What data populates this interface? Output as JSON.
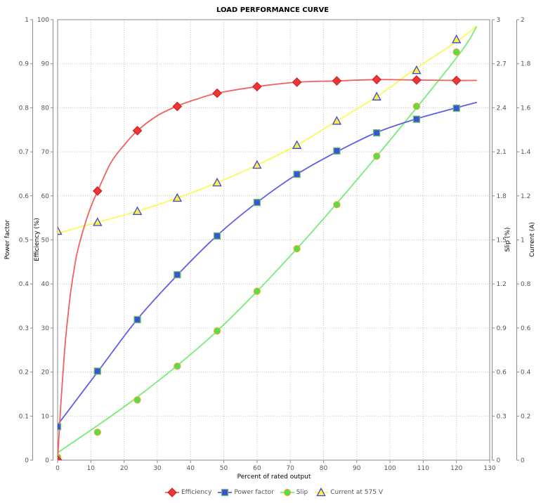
{
  "title": "LOAD PERFORMANCE CURVE",
  "axes": {
    "x": {
      "label": "Percent of rated output",
      "min": 0,
      "max": 130,
      "ticks": [
        "0",
        "10",
        "20",
        "30",
        "40",
        "50",
        "60",
        "70",
        "80",
        "90",
        "100",
        "110",
        "120",
        "130"
      ]
    },
    "power_factor": {
      "label": "Power factor",
      "min": 0,
      "max": 1,
      "ticks": [
        "0",
        "0.1",
        "0.2",
        "0.3",
        "0.4",
        "0.5",
        "0.6",
        "0.7",
        "0.8",
        "0.9",
        "1"
      ]
    },
    "efficiency": {
      "label": "Efficiency (%)",
      "min": 0,
      "max": 100,
      "ticks": [
        "0",
        "10",
        "20",
        "30",
        "40",
        "50",
        "60",
        "70",
        "80",
        "90",
        "100"
      ]
    },
    "slip": {
      "label": "Slip (%)",
      "min": 0,
      "max": 3,
      "ticks": [
        "0",
        "0.3",
        "0.6",
        "0.9",
        "1.2",
        "1.5",
        "1.8",
        "2.1",
        "2.4",
        "2.7",
        "3"
      ]
    },
    "current": {
      "label": "Current (A)",
      "min": 0,
      "max": 2,
      "ticks": [
        "0",
        "0.2",
        "0.4",
        "0.6",
        "0.8",
        "1",
        "1.2",
        "1.4",
        "1.6",
        "1.8",
        "2"
      ]
    }
  },
  "chart_data": {
    "type": "line",
    "title": "LOAD PERFORMANCE CURVE",
    "xlabel": "Percent of rated output",
    "xlim": [
      0,
      130
    ],
    "grid": true,
    "legend_position": "bottom",
    "x": [
      0,
      12,
      24,
      36,
      48,
      60,
      72,
      84,
      96,
      108,
      120
    ],
    "series": [
      {
        "name": "Current at 575 V",
        "yaxis": "current",
        "ylim": [
          0,
          2
        ],
        "marker": "triangle",
        "line_color": "#fafa58",
        "marker_fill": "#fdec49",
        "marker_stroke": "#3d49d3",
        "values": [
          1.04,
          1.08,
          1.13,
          1.19,
          1.26,
          1.34,
          1.43,
          1.54,
          1.65,
          1.77,
          1.91
        ],
        "fit_line": [
          [
            0,
            1.03
          ],
          [
            12,
            1.08
          ],
          [
            24,
            1.13
          ],
          [
            36,
            1.19
          ],
          [
            48,
            1.26
          ],
          [
            60,
            1.34
          ],
          [
            72,
            1.43
          ],
          [
            84,
            1.54
          ],
          [
            96,
            1.65
          ],
          [
            108,
            1.78
          ],
          [
            120,
            1.9
          ],
          [
            126,
            1.97
          ]
        ]
      },
      {
        "name": "Slip",
        "yaxis": "slip",
        "ylim": [
          0,
          3
        ],
        "marker": "circle",
        "line_color": "#76ee76",
        "marker_fill": "#4be34b",
        "marker_stroke": "#eea52f",
        "values": [
          0.02,
          0.19,
          0.41,
          0.64,
          0.88,
          1.15,
          1.44,
          1.74,
          2.07,
          2.41,
          2.78
        ],
        "fit_line": [
          [
            0,
            0.05
          ],
          [
            24,
            0.43
          ],
          [
            48,
            0.88
          ],
          [
            72,
            1.44
          ],
          [
            96,
            2.07
          ],
          [
            120,
            2.74
          ],
          [
            126,
            2.95
          ]
        ]
      },
      {
        "name": "Power factor",
        "yaxis": "power_factor",
        "ylim": [
          0,
          1
        ],
        "marker": "square",
        "line_color": "#5e5ee8",
        "marker_fill": "#3f51d6",
        "marker_stroke": "#62c462",
        "values": [
          0.076,
          0.202,
          0.319,
          0.421,
          0.509,
          0.585,
          0.649,
          0.702,
          0.743,
          0.774,
          0.799
        ],
        "fit_line": [
          [
            0,
            0.08
          ],
          [
            12,
            0.2
          ],
          [
            24,
            0.32
          ],
          [
            36,
            0.42
          ],
          [
            48,
            0.51
          ],
          [
            60,
            0.585
          ],
          [
            72,
            0.649
          ],
          [
            84,
            0.7
          ],
          [
            96,
            0.744
          ],
          [
            108,
            0.775
          ],
          [
            120,
            0.8
          ],
          [
            126,
            0.812
          ]
        ]
      },
      {
        "name": "Efficiency",
        "yaxis": "efficiency",
        "ylim": [
          0,
          100
        ],
        "marker": "diamond",
        "line_color": "#f26060",
        "marker_fill": "#ee3636",
        "marker_stroke": "#cf2222",
        "values": [
          0,
          61.1,
          74.8,
          80.3,
          83.3,
          84.8,
          85.8,
          86.1,
          86.4,
          86.3,
          86.2
        ],
        "fit_line": [
          [
            0,
            0
          ],
          [
            1,
            13
          ],
          [
            2,
            24
          ],
          [
            3,
            32
          ],
          [
            4,
            38.5
          ],
          [
            5,
            43.5
          ],
          [
            6,
            47.5
          ],
          [
            8,
            53
          ],
          [
            10,
            57.5
          ],
          [
            12,
            61
          ],
          [
            16,
            67.5
          ],
          [
            20,
            71.5
          ],
          [
            24,
            74.8
          ],
          [
            30,
            78.2
          ],
          [
            36,
            80.4
          ],
          [
            42,
            82
          ],
          [
            48,
            83.3
          ],
          [
            60,
            84.8
          ],
          [
            72,
            85.8
          ],
          [
            84,
            86.1
          ],
          [
            96,
            86.4
          ],
          [
            108,
            86.3
          ],
          [
            120,
            86.2
          ],
          [
            126,
            86.2
          ]
        ]
      }
    ],
    "legend": [
      "Efficiency",
      "Power factor",
      "Slip",
      "Current at 575 V"
    ]
  },
  "style": {
    "grid_color": "#c4c4c4",
    "axis_color": "#8a8a8a",
    "tick_label_color": "#555555",
    "title_color": "#222222"
  }
}
